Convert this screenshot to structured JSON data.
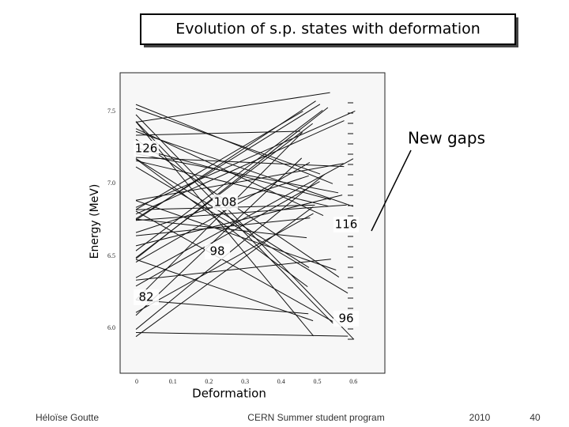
{
  "header": {
    "title": "Evolution of s.p. states with deformation"
  },
  "figure": {
    "y_axis_label": "Energy (MeV)",
    "x_axis_label": "Deformation",
    "y_ticks": [
      "7.5",
      "7.0",
      "6.5",
      "6.0"
    ],
    "x_ticks": [
      "0",
      "0.1",
      "0.2",
      "0.3",
      "0.4",
      "0.5",
      "0.6"
    ],
    "annotation": "New gaps",
    "gaps": [
      "126",
      "108",
      "116",
      "98",
      "82",
      "96"
    ]
  },
  "footer": {
    "author": "Héloïse Goutte",
    "event": "CERN Summer student program",
    "year": "2010",
    "page": "40"
  }
}
